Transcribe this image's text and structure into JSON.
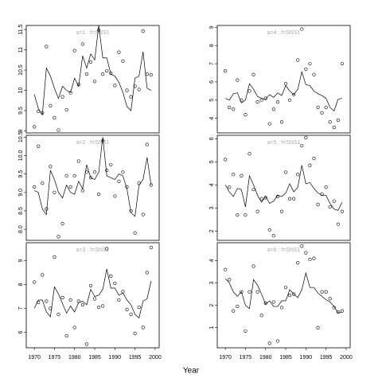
{
  "x_axis": {
    "label": "Year",
    "xlim": [
      1968,
      2001
    ],
    "xticks": [
      1970,
      1975,
      1980,
      1985,
      1990,
      1995,
      2000
    ]
  },
  "chart_data": [
    {
      "type": "line",
      "title": "a=1 : f=SNS1",
      "ylim": [
        8.95,
        11.6
      ],
      "yticks": [
        9.0,
        9.5,
        10.0,
        10.5,
        11.0,
        11.5
      ],
      "x": [
        1970,
        1971,
        1972,
        1973,
        1974,
        1975,
        1976,
        1977,
        1978,
        1979,
        1980,
        1981,
        1982,
        1983,
        1984,
        1985,
        1986,
        1987,
        1988,
        1989,
        1990,
        1991,
        1992,
        1993,
        1994,
        1995,
        1996,
        1997,
        1998,
        1999
      ],
      "series": [
        {
          "style": "points",
          "color": "#000000",
          "values": [
            9.1,
            9.48,
            9.44,
            11.08,
            9.62,
            9.32,
            9.02,
            9.84,
            9.52,
            9.94,
            10.98,
            10.14,
            11.14,
            10.4,
            10.7,
            10.22,
            11.48,
            10.4,
            10.48,
            10.42,
            10.12,
            10.94,
            10.72,
            10.0,
            9.84,
            10.1,
            10.02,
            11.46,
            10.4,
            10.38
          ]
        },
        {
          "style": "line",
          "color": "#000000",
          "values": [
            9.9,
            9.55,
            9.4,
            10.55,
            10.35,
            10.05,
            9.8,
            10.1,
            10.0,
            9.95,
            10.3,
            10.1,
            10.85,
            10.55,
            10.9,
            10.75,
            11.6,
            10.8,
            10.8,
            10.4,
            10.35,
            10.2,
            9.95,
            9.6,
            9.5,
            10.3,
            10.35,
            10.95,
            10.05,
            10.0
          ]
        }
      ]
    },
    {
      "type": "line",
      "title": "a=2 : f=SNS1",
      "ylim": [
        7.7,
        10.55
      ],
      "yticks": [
        {
          "value": 8,
          "label": "8.0"
        },
        8.5,
        {
          "value": 9,
          "label": "9.0"
        },
        9.5,
        {
          "value": 10,
          "label": "10.0"
        },
        10.5
      ],
      "x": [
        1970,
        1971,
        1972,
        1973,
        1974,
        1975,
        1976,
        1977,
        1978,
        1979,
        1980,
        1981,
        1982,
        1983,
        1984,
        1985,
        1986,
        1987,
        1988,
        1989,
        1990,
        1991,
        1992,
        1993,
        1994,
        1995,
        1996,
        1997,
        1998,
        1999
      ],
      "series": [
        {
          "style": "points",
          "color": "#000000",
          "values": [
            9.15,
            10.25,
            9.25,
            8.55,
            9.7,
            9.0,
            7.8,
            8.15,
            9.45,
            9.15,
            9.45,
            9.85,
            9.05,
            9.55,
            9.4,
            9.55,
            8.95,
            10.4,
            9.6,
            9.75,
            8.9,
            9.3,
            9.55,
            9.15,
            8.5,
            7.9,
            9.25,
            8.4,
            10.3,
            9.2
          ]
        },
        {
          "style": "line",
          "color": "#000000",
          "values": [
            9.05,
            9.0,
            8.55,
            8.4,
            9.6,
            9.35,
            9.0,
            8.85,
            9.2,
            9.0,
            8.95,
            9.3,
            9.1,
            9.75,
            9.4,
            9.35,
            9.55,
            10.5,
            9.45,
            9.4,
            9.35,
            9.5,
            9.45,
            9.1,
            8.45,
            8.35,
            9.2,
            9.35,
            9.95,
            9.2
          ]
        }
      ]
    },
    {
      "type": "line",
      "title": "a=3 : f=SNS1",
      "ylim": [
        5.35,
        9.75
      ],
      "yticks": [
        6,
        7,
        8,
        9
      ],
      "x": [
        1970,
        1971,
        1972,
        1973,
        1974,
        1975,
        1976,
        1977,
        1978,
        1979,
        1980,
        1981,
        1982,
        1983,
        1984,
        1985,
        1986,
        1987,
        1988,
        1989,
        1990,
        1991,
        1992,
        1993,
        1994,
        1995,
        1996,
        1997,
        1998,
        1999
      ],
      "series": [
        {
          "style": "points",
          "color": "#000000",
          "values": [
            8.1,
            7.25,
            8.4,
            7.3,
            7.0,
            9.15,
            6.75,
            7.45,
            5.85,
            7.35,
            6.2,
            7.3,
            7.15,
            5.5,
            7.95,
            7.4,
            7.05,
            7.1,
            9.5,
            8.35,
            8.05,
            7.35,
            7.7,
            6.95,
            6.75,
            5.95,
            7.05,
            6.2,
            8.5,
            9.55
          ]
        },
        {
          "style": "line",
          "color": "#000000",
          "values": [
            7.0,
            7.35,
            7.35,
            6.85,
            6.65,
            7.9,
            7.6,
            7.2,
            6.8,
            7.1,
            6.85,
            7.25,
            7.3,
            7.15,
            7.8,
            7.5,
            7.55,
            7.8,
            8.65,
            7.85,
            7.85,
            7.55,
            7.65,
            7.35,
            7.15,
            6.75,
            6.6,
            7.3,
            7.4,
            8.15
          ]
        }
      ]
    },
    {
      "type": "line",
      "title": "a=4 : f=SNS1",
      "ylim": [
        3.2,
        9.1
      ],
      "yticks": [
        4,
        5,
        6,
        7,
        8,
        9
      ],
      "x": [
        1970,
        1971,
        1972,
        1973,
        1974,
        1975,
        1976,
        1977,
        1978,
        1979,
        1980,
        1981,
        1982,
        1983,
        1984,
        1985,
        1986,
        1987,
        1988,
        1989,
        1990,
        1991,
        1992,
        1993,
        1994,
        1995,
        1996,
        1997,
        1998,
        1999
      ],
      "series": [
        {
          "style": "points",
          "color": "#000000",
          "values": [
            6.6,
            4.6,
            4.5,
            6.1,
            5.0,
            4.2,
            5.5,
            6.4,
            4.9,
            5.0,
            5.1,
            3.7,
            4.5,
            4.9,
            3.8,
            5.9,
            5.0,
            5.3,
            7.2,
            8.9,
            6.7,
            7.0,
            6.4,
            4.6,
            4.3,
            4.6,
            3.8,
            3.5,
            3.9,
            7.0
          ]
        },
        {
          "style": "line",
          "color": "#000000",
          "values": [
            5.1,
            5.0,
            5.35,
            5.4,
            4.85,
            5.0,
            5.9,
            5.6,
            5.2,
            5.1,
            5.05,
            5.3,
            5.15,
            5.4,
            5.25,
            5.8,
            5.5,
            5.3,
            5.6,
            6.55,
            5.85,
            5.8,
            5.5,
            5.35,
            5.25,
            5.1,
            4.6,
            4.4,
            5.05,
            5.1
          ]
        }
      ]
    },
    {
      "type": "line",
      "title": "a=5 : f=SNS1",
      "ylim": [
        1.6,
        6.15
      ],
      "yticks": [
        2,
        3,
        4,
        5,
        6
      ],
      "x": [
        1970,
        1971,
        1972,
        1973,
        1974,
        1975,
        1976,
        1977,
        1978,
        1979,
        1980,
        1981,
        1982,
        1983,
        1984,
        1985,
        1986,
        1987,
        1988,
        1989,
        1990,
        1991,
        1992,
        1993,
        1994,
        1995,
        1996,
        1997,
        1998,
        1999
      ],
      "series": [
        {
          "style": "points",
          "color": "#000000",
          "values": [
            5.1,
            3.9,
            4.45,
            2.7,
            4.4,
            2.7,
            5.35,
            3.8,
            2.85,
            3.4,
            3.45,
            2.05,
            1.8,
            3.5,
            2.85,
            4.55,
            3.4,
            3.4,
            4.45,
            5.7,
            6.05,
            4.85,
            5.15,
            3.15,
            3.6,
            3.9,
            3.05,
            3.3,
            2.3,
            2.85
          ]
        },
        {
          "style": "line",
          "color": "#000000",
          "values": [
            4.0,
            3.7,
            3.5,
            3.85,
            3.8,
            3.05,
            4.4,
            4.0,
            3.55,
            3.25,
            3.5,
            3.2,
            3.3,
            3.55,
            3.5,
            3.65,
            4.05,
            3.7,
            3.9,
            4.85,
            4.05,
            4.1,
            3.85,
            3.65,
            3.55,
            3.55,
            3.2,
            2.95,
            2.9,
            3.25
          ]
        }
      ]
    },
    {
      "type": "line",
      "title": "a=6 : f=SNS1",
      "ylim": [
        0.1,
        4.8
      ],
      "yticks": [
        1,
        2,
        3,
        4
      ],
      "x": [
        1970,
        1971,
        1972,
        1973,
        1974,
        1975,
        1976,
        1977,
        1978,
        1979,
        1980,
        1981,
        1982,
        1983,
        1984,
        1985,
        1986,
        1987,
        1988,
        1989,
        1990,
        1991,
        1992,
        1993,
        1994,
        1995,
        1996,
        1997,
        1998,
        1999
      ],
      "series": [
        {
          "style": "points",
          "color": "#000000",
          "values": [
            3.6,
            3.15,
            1.75,
            1.95,
            2.6,
            0.85,
            2.6,
            3.75,
            2.6,
            1.55,
            2.1,
            0.3,
            2.15,
            0.4,
            1.9,
            2.8,
            2.45,
            2.5,
            3.9,
            4.65,
            4.35,
            4.05,
            4.1,
            1.0,
            2.6,
            2.6,
            2.3,
            1.9,
            1.7,
            1.75
          ]
        },
        {
          "style": "line",
          "color": "#000000",
          "values": [
            3.2,
            3.0,
            2.6,
            2.4,
            2.6,
            2.0,
            1.85,
            3.15,
            2.9,
            2.5,
            2.05,
            2.2,
            1.95,
            1.95,
            2.2,
            2.2,
            2.7,
            2.5,
            2.35,
            2.7,
            3.45,
            2.8,
            2.8,
            2.55,
            2.4,
            2.25,
            2.15,
            1.95,
            1.65,
            1.7
          ]
        }
      ]
    }
  ]
}
